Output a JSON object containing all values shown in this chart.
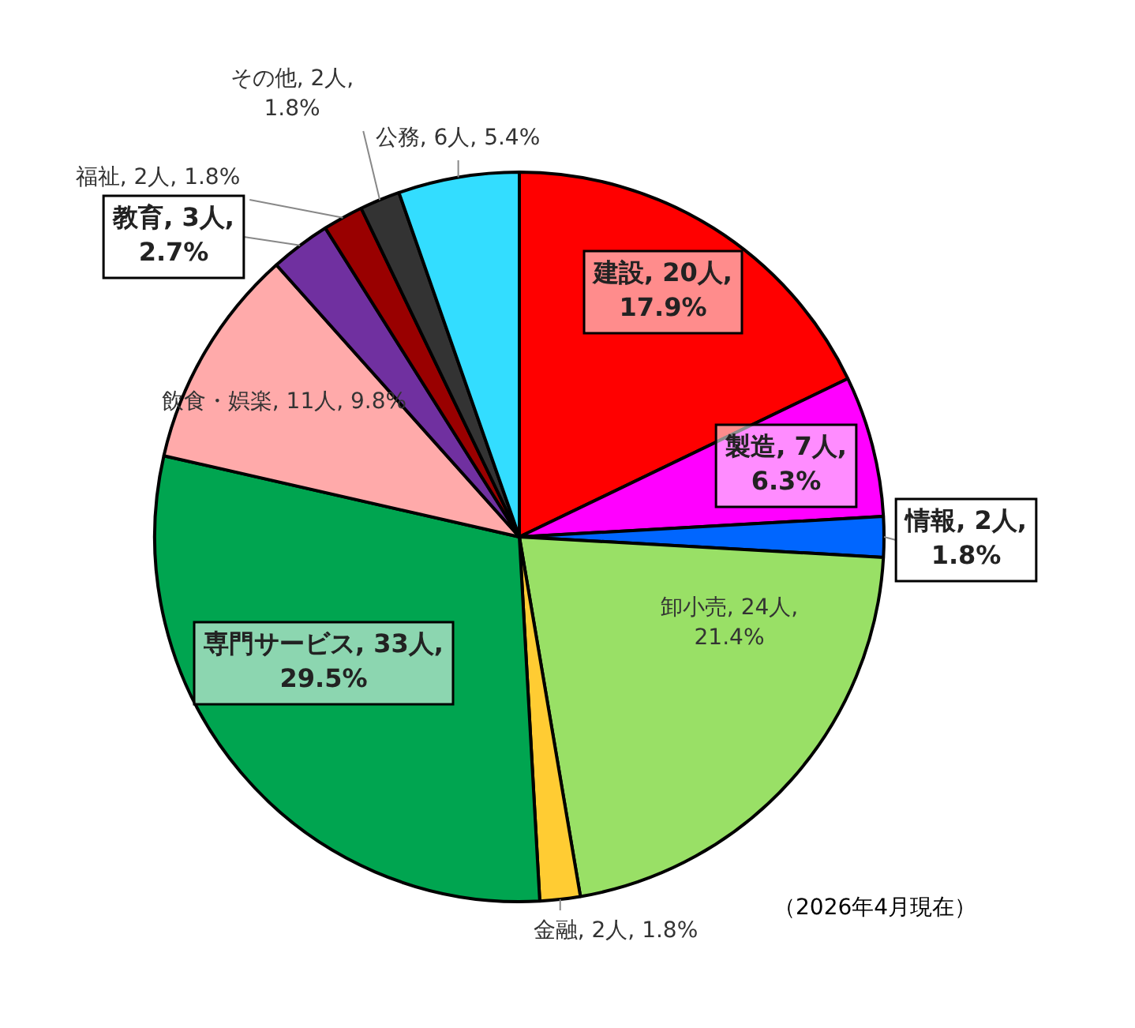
{
  "chart_data": {
    "type": "pie",
    "categories": [
      "建設",
      "製造",
      "情報",
      "卸小売",
      "金融",
      "専門サービス",
      "飲食・娯楽",
      "教育",
      "福祉",
      "その他",
      "公務"
    ],
    "values": [
      20,
      7,
      2,
      24,
      2,
      33,
      11,
      3,
      2,
      2,
      6
    ],
    "colors": [
      "#ff0000",
      "#ff00ff",
      "#0066ff",
      "#99e066",
      "#ffcc33",
      "#00a550",
      "#ffaaaa",
      "#7030a0",
      "#990000",
      "#333333",
      "#33ddff"
    ],
    "value_labels": [
      "20人, 17.9%",
      "7人, 6.3%",
      "2人, 1.8%",
      "24人, 21.4%",
      "2人, 1.8%",
      "33人, 29.5%",
      "11人, 9.8%",
      "3人, 2.7%",
      "2人, 1.8%",
      "2人, 1.8%",
      "6人, 5.4%"
    ],
    "annotations": [
      "（2026年4月現在）"
    ]
  }
}
